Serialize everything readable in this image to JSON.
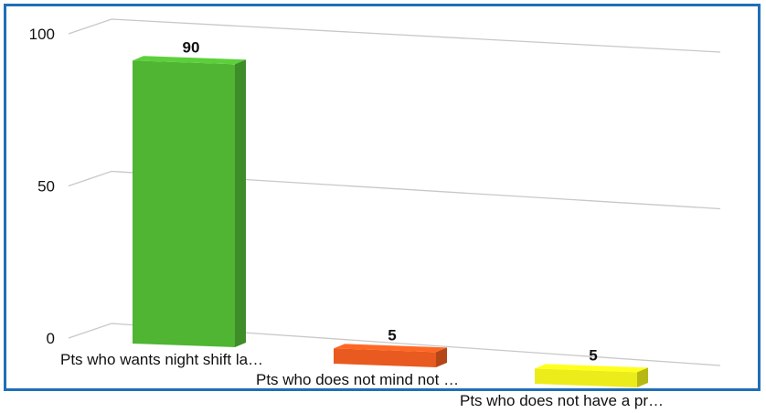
{
  "chart_data": {
    "type": "bar",
    "categories": [
      "Pts who wants night shift la…",
      "Pts who does not mind not …",
      "Pts who does not have a pr…"
    ],
    "values": [
      90,
      5,
      5
    ],
    "colors": [
      "#4fb533",
      "#e85a1f",
      "#ecec1a"
    ],
    "yticks": [
      0,
      50,
      100
    ],
    "ylim": [
      0,
      100
    ],
    "title": "",
    "xlabel": "",
    "ylabel": "",
    "grid": true,
    "style": "3d"
  }
}
